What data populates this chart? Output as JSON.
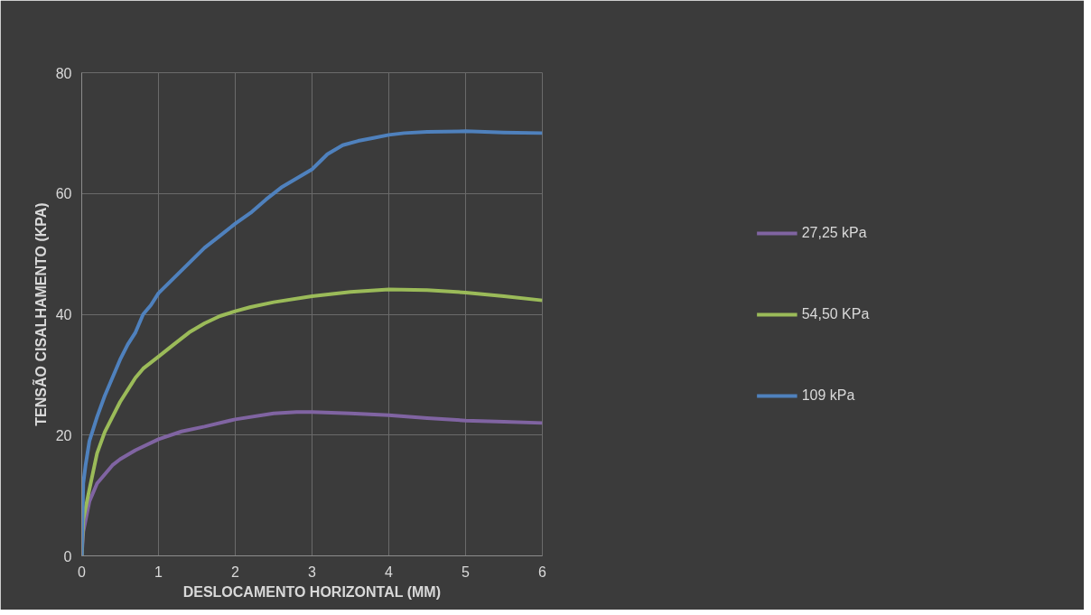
{
  "chart_data": {
    "type": "line",
    "xlabel": "DESLOCAMENTO HORIZONTAL (MM)",
    "ylabel": "TENSÃO CISALHAMENTO (KPA)",
    "xlim": [
      0,
      6
    ],
    "xticks": [
      0,
      1,
      2,
      3,
      4,
      5,
      6
    ],
    "ylim": [
      0,
      80
    ],
    "yticks": [
      0,
      20,
      40,
      60,
      80
    ],
    "grid": true,
    "legend": "right",
    "marker": "none",
    "line_style": "solid",
    "series": [
      {
        "name": "27,25 kPa",
        "color": "#8064a2",
        "x": [
          0,
          0.02,
          0.1,
          0.2,
          0.3,
          0.4,
          0.5,
          0.7,
          1,
          1.3,
          1.6,
          2,
          2.5,
          2.8,
          3,
          3.5,
          4,
          4.5,
          5,
          5.5,
          6
        ],
        "values": [
          0,
          4,
          9,
          12,
          13.5,
          15,
          16,
          17.5,
          19.3,
          20.6,
          21.4,
          22.6,
          23.6,
          23.8,
          23.8,
          23.6,
          23.3,
          22.8,
          22.4,
          22.2,
          22
        ]
      },
      {
        "name": "54,50 KPa",
        "color": "#9bbb59",
        "x": [
          0,
          0.02,
          0.1,
          0.2,
          0.3,
          0.4,
          0.5,
          0.6,
          0.7,
          0.8,
          1,
          1.2,
          1.4,
          1.6,
          1.8,
          2,
          2.2,
          2.5,
          3,
          3.5,
          4,
          4.5,
          5,
          5.5,
          6
        ],
        "values": [
          0,
          6,
          11,
          17,
          20.5,
          23,
          25.5,
          27.5,
          29.5,
          31,
          33,
          35,
          37,
          38.5,
          39.7,
          40.5,
          41.2,
          42,
          43,
          43.7,
          44.1,
          44,
          43.6,
          43,
          42.3
        ]
      },
      {
        "name": "109 kPa",
        "color": "#4f81bd",
        "x": [
          0,
          0.02,
          0.05,
          0.1,
          0.2,
          0.3,
          0.4,
          0.5,
          0.6,
          0.7,
          0.8,
          0.9,
          1,
          1.2,
          1.4,
          1.6,
          1.8,
          2,
          2.2,
          2.4,
          2.6,
          2.8,
          3,
          3.2,
          3.4,
          3.6,
          3.8,
          4,
          4.2,
          4.5,
          5,
          5.5,
          6
        ],
        "values": [
          0,
          12,
          15,
          19,
          23,
          26.5,
          29.5,
          32.5,
          35,
          37,
          40,
          41.5,
          43.5,
          46,
          48.5,
          51,
          53,
          55,
          56.8,
          59,
          61,
          62.5,
          64,
          66.5,
          68,
          68.7,
          69.2,
          69.7,
          70,
          70.2,
          70.3,
          70.1,
          70
        ]
      }
    ]
  }
}
